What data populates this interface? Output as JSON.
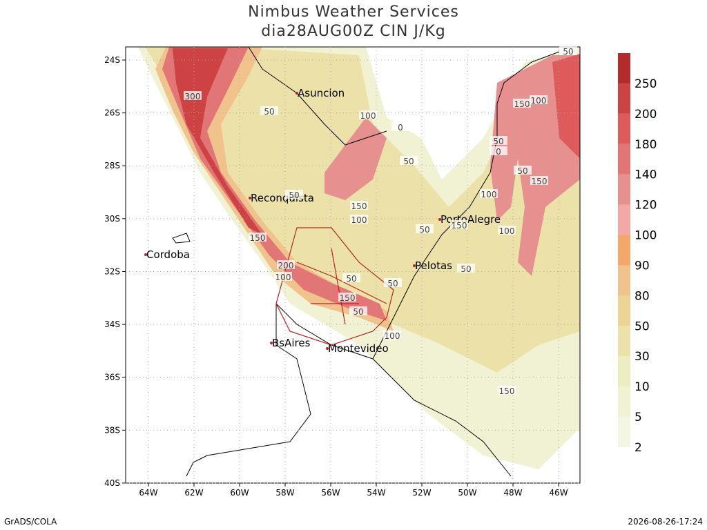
{
  "header": {
    "title": "Nimbus Weather Services",
    "subtitle": "dia28AUG00Z CIN J/Kg"
  },
  "map": {
    "lat_ticks": [
      {
        "value": -24,
        "label": "24S"
      },
      {
        "value": -26,
        "label": "26S"
      },
      {
        "value": -28,
        "label": "28S"
      },
      {
        "value": -30,
        "label": "30S"
      },
      {
        "value": -32,
        "label": "32S"
      },
      {
        "value": -34,
        "label": "34S"
      },
      {
        "value": -36,
        "label": "36S"
      },
      {
        "value": -38,
        "label": "38S"
      },
      {
        "value": -40,
        "label": "40S"
      }
    ],
    "lon_ticks": [
      {
        "value": -64,
        "label": "64W"
      },
      {
        "value": -62,
        "label": "62W"
      },
      {
        "value": -60,
        "label": "60W"
      },
      {
        "value": -58,
        "label": "58W"
      },
      {
        "value": -56,
        "label": "56W"
      },
      {
        "value": -54,
        "label": "54W"
      },
      {
        "value": -52,
        "label": "52W"
      },
      {
        "value": -50,
        "label": "50W"
      },
      {
        "value": -48,
        "label": "48W"
      },
      {
        "value": -46,
        "label": "46W"
      }
    ],
    "cities": [
      "Asuncion",
      "Reconquista",
      "Cordoba",
      "PortoAlegre",
      "Pelotas",
      "BsAires",
      "Montevideo"
    ],
    "contour_labels": [
      "300",
      "50",
      "100",
      "0",
      "50",
      "150",
      "100",
      "50",
      "150",
      "200",
      "100",
      "50",
      "150",
      "50",
      "100",
      "50",
      "50",
      "100",
      "150",
      "0",
      "50",
      "50",
      "150",
      "100",
      "150",
      "100",
      "50",
      "50",
      "150"
    ]
  },
  "colorbar": {
    "levels": [
      2,
      5,
      10,
      30,
      50,
      80,
      90,
      100,
      120,
      140,
      180,
      200,
      250
    ],
    "colors": [
      "#f3f6e2",
      "#f1f2d3",
      "#eeedc2",
      "#ece2a9",
      "#ecd495",
      "#f1c38c",
      "#f5a66a",
      "#f3a8a6",
      "#e69090",
      "#e27676",
      "#df5b5b",
      "#cd4343",
      "#b42b2b"
    ]
  },
  "footer": {
    "left": "GrADS/COLA",
    "right": "2026-08-26-17:24"
  }
}
